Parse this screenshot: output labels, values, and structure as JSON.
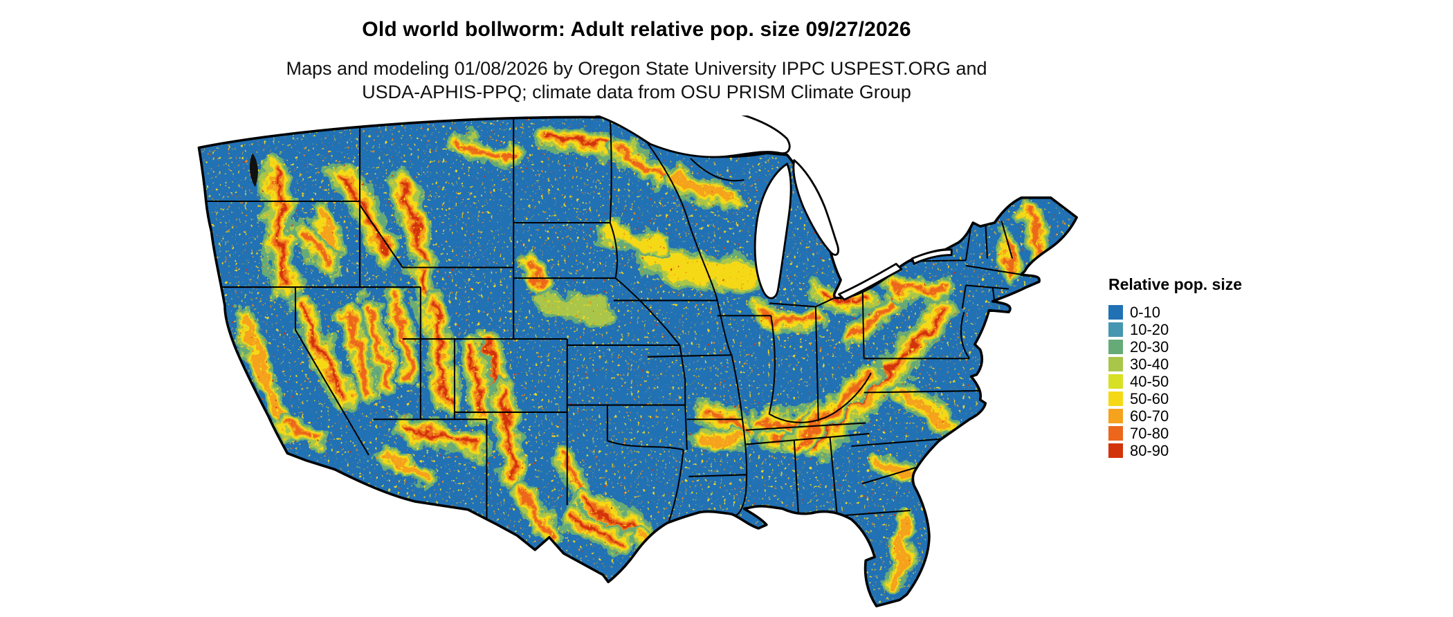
{
  "header": {
    "title": "Old world bollworm: Adult relative pop. size 09/27/2026",
    "subtitle_line1": "Maps and modeling 01/08/2026 by Oregon State University IPPC USPEST.ORG and",
    "subtitle_line2": "USDA-APHIS-PPQ; climate data from OSU PRISM Climate Group"
  },
  "map": {
    "region": "Conterminous United States",
    "background_color": "#ffffff",
    "border_color": "#000000"
  },
  "legend": {
    "title": "Relative pop. size",
    "entries": [
      {
        "label": "0-10",
        "color": "#2171b5"
      },
      {
        "label": "10-20",
        "color": "#4696b1"
      },
      {
        "label": "20-30",
        "color": "#66ab77"
      },
      {
        "label": "30-40",
        "color": "#a9c64a"
      },
      {
        "label": "40-50",
        "color": "#d7e024"
      },
      {
        "label": "50-60",
        "color": "#f5d916"
      },
      {
        "label": "60-70",
        "color": "#f5a21d"
      },
      {
        "label": "70-80",
        "color": "#ec671b"
      },
      {
        "label": "80-90",
        "color": "#d2330b"
      }
    ]
  }
}
